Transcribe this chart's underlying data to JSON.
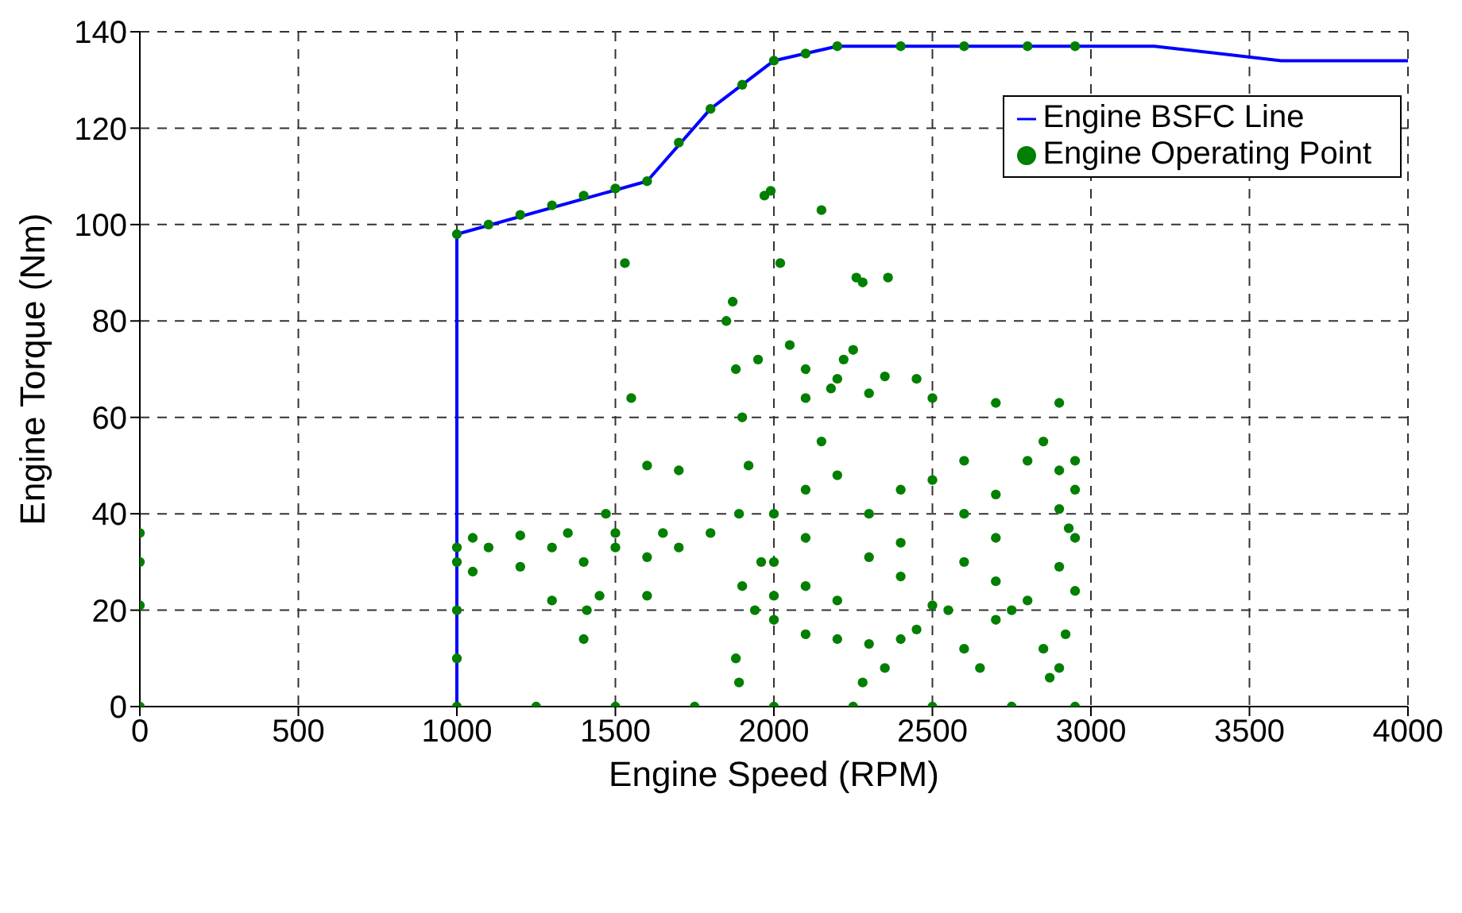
{
  "chart_data": {
    "type": "scatter",
    "xlabel": "Engine Speed (RPM)",
    "ylabel": "Engine Torque (Nm)",
    "xlim": [
      0,
      4000
    ],
    "xticks": [
      0,
      500,
      1000,
      1500,
      2000,
      2500,
      3000,
      3500,
      4000
    ],
    "ylim": [
      0,
      140
    ],
    "yticks": [
      0,
      20,
      40,
      60,
      80,
      100,
      120,
      140
    ],
    "grid": true,
    "legend": "top right",
    "series": [
      {
        "name": "Engine BSFC Line",
        "type": "line",
        "color": "#0000ff",
        "line_style": "solid",
        "marker": "none",
        "x": [
          1000,
          1000,
          1600,
          1800,
          2000,
          2200,
          3200,
          3600,
          4000
        ],
        "values": [
          0,
          98,
          109,
          124,
          134,
          137,
          137,
          134,
          134
        ]
      },
      {
        "name": "Engine Operating Point",
        "type": "scatter",
        "color": "#007f00",
        "marker": "circle",
        "x": [
          0,
          1000,
          1250,
          1500,
          1750,
          2000,
          2250,
          2500,
          2750,
          2950,
          0,
          0,
          0,
          1000,
          1000,
          1000,
          1000,
          1000,
          1100,
          1200,
          1300,
          1400,
          1500,
          1600,
          1700,
          1800,
          1900,
          2000,
          2100,
          2200,
          2400,
          2600,
          2800,
          2950,
          1530,
          1970,
          1990,
          2020,
          2150,
          2260,
          2360,
          2280,
          1050,
          1200,
          1350,
          1500,
          1650,
          1800,
          1100,
          1300,
          1500,
          1700,
          1050,
          1200,
          1400,
          1600,
          1300,
          1450,
          1600,
          1850,
          1870,
          1880,
          1900,
          1920,
          1890,
          1900,
          1880,
          1890,
          1950,
          1960,
          1940,
          1550,
          1700,
          1600,
          1470,
          1400,
          1410,
          2150,
          2180,
          2220,
          2250,
          2100,
          2300,
          2500,
          2700,
          2900,
          2200,
          2350,
          2450,
          2600,
          2800,
          2950,
          2100,
          2400,
          2700,
          2000,
          2300,
          2600,
          2900,
          2100,
          2400,
          2700,
          2950,
          2000,
          2300,
          2600,
          2900,
          2100,
          2400,
          2700,
          2950,
          2000,
          2200,
          2500,
          2800,
          2000,
          2100,
          2200,
          2300,
          2400,
          2280,
          2350,
          2450,
          2550,
          2600,
          2650,
          2700,
          2750,
          2850,
          2870,
          2900,
          2920,
          2050,
          2100,
          2200,
          2500,
          2850,
          2900,
          2950,
          2930
        ],
        "values": [
          0,
          0,
          0,
          0,
          0,
          0,
          0,
          0,
          0,
          0,
          21,
          30,
          36,
          10,
          20,
          30,
          33,
          98,
          100,
          102,
          104,
          106,
          107.5,
          109,
          117,
          124,
          129,
          134,
          135.5,
          137,
          137,
          137,
          137,
          137,
          92,
          106,
          107,
          92,
          103,
          89,
          89,
          88,
          35,
          35.5,
          36,
          36,
          36,
          36,
          33,
          33,
          33,
          33,
          28,
          29,
          30,
          31,
          22,
          23,
          23,
          80,
          84,
          70,
          60,
          50,
          40,
          25,
          10,
          5,
          72,
          30,
          20,
          64,
          49,
          50,
          40,
          14,
          20,
          55,
          66,
          72,
          74,
          64,
          65,
          64,
          63,
          63,
          68,
          68.5,
          68,
          51,
          51,
          51,
          45,
          45,
          44,
          40,
          40,
          40,
          41,
          35,
          34,
          35,
          35,
          30,
          31,
          30,
          29,
          25,
          27,
          26,
          24,
          23,
          22,
          21,
          22,
          18,
          15,
          14,
          13,
          14,
          5,
          8,
          16,
          20,
          12,
          8,
          18,
          20,
          12,
          6,
          8,
          15,
          75,
          70,
          48,
          47,
          55,
          49,
          45,
          37
        ]
      }
    ]
  }
}
